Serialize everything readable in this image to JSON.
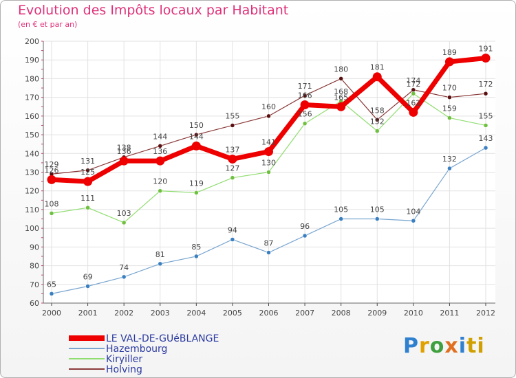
{
  "header": {
    "title": "Evolution des Impôts locaux par Habitant",
    "subtitle": "(en € et par an)"
  },
  "logo": {
    "text": "Proxiti"
  },
  "chart_data": {
    "type": "line",
    "title": "Evolution des Impôts locaux par Habitant",
    "subtitle": "(en € et par an)",
    "xlabel": "",
    "ylabel": "",
    "ylim": [
      60,
      200
    ],
    "yticks": [
      60,
      70,
      80,
      90,
      100,
      110,
      120,
      130,
      140,
      150,
      160,
      170,
      180,
      190,
      200
    ],
    "categories": [
      "2000",
      "2001",
      "2002",
      "2003",
      "2004",
      "2005",
      "2006",
      "2007",
      "2008",
      "2009",
      "2010",
      "2011",
      "2012"
    ],
    "grid": true,
    "legend_position": "bottom-left",
    "series": [
      {
        "name": "Holving",
        "color": "#8b3a3a",
        "point_color": "#5a1010",
        "width": 1.2,
        "values": [
          129,
          131,
          138,
          144,
          150,
          155,
          160,
          171,
          180,
          158,
          174,
          170,
          172
        ]
      },
      {
        "name": "Kiryiller",
        "color": "#90dd70",
        "point_color": "#70c040",
        "width": 1.2,
        "values": [
          108,
          111,
          103,
          120,
          119,
          127,
          130,
          156,
          168,
          152,
          172,
          159,
          155
        ]
      },
      {
        "name": "Hazembourg",
        "color": "#7aa6d0",
        "point_color": "#3a80c0",
        "width": 1.2,
        "values": [
          65,
          69,
          74,
          81,
          85,
          94,
          87,
          96,
          105,
          105,
          104,
          132,
          143
        ]
      },
      {
        "name": "LE VAL-DE-GUéBLANGE",
        "color": "#ee0000",
        "point_color": "#ee0000",
        "width": 7,
        "values": [
          126,
          125,
          136,
          136,
          144,
          137,
          141,
          166,
          165,
          181,
          162,
          189,
          191
        ]
      }
    ],
    "legend_order": [
      "LE VAL-DE-GUéBLANGE",
      "Hazembourg",
      "Kiryiller",
      "Holving"
    ]
  }
}
